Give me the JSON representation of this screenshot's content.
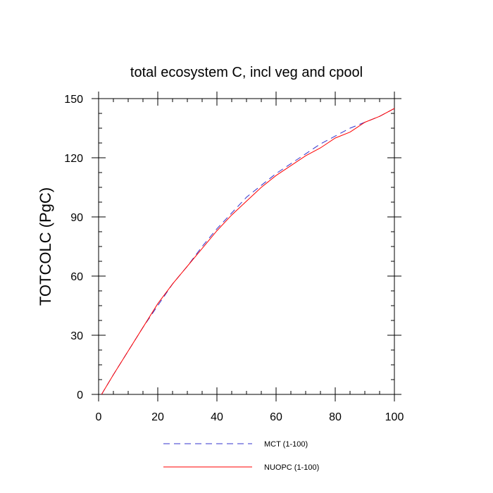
{
  "chart_data": {
    "type": "line",
    "title": "total ecosystem C, incl veg and cpool",
    "xlabel": "",
    "ylabel": "TOTCOLC  (PgC)",
    "xlim": [
      0,
      100
    ],
    "ylim": [
      0,
      150
    ],
    "x_ticks": [
      0,
      20,
      40,
      60,
      80,
      100
    ],
    "y_ticks": [
      0,
      30,
      60,
      90,
      120,
      150
    ],
    "x_tick_labels": [
      "0",
      "20",
      "40",
      "60",
      "80",
      "100"
    ],
    "y_tick_labels": [
      "0",
      "30",
      "60",
      "90",
      "120",
      "150"
    ],
    "grid": false,
    "legend_position": "bottom",
    "x": [
      1,
      5,
      10,
      15,
      20,
      25,
      30,
      35,
      40,
      45,
      50,
      55,
      60,
      65,
      70,
      75,
      80,
      85,
      90,
      95,
      100
    ],
    "series": [
      {
        "name": "MCT (1-100)",
        "color": "#3333cc",
        "style": "dashed",
        "values": [
          0,
          10,
          22,
          34,
          45,
          56,
          65,
          75,
          84,
          92,
          100,
          106,
          112,
          117,
          122,
          127,
          131,
          135,
          138,
          141,
          145
        ]
      },
      {
        "name": "NUOPC (1-100)",
        "color": "#ff0000",
        "style": "solid",
        "values": [
          0,
          10,
          22,
          34,
          46,
          56,
          65,
          74,
          83,
          91,
          98,
          105,
          111,
          116,
          121,
          125,
          130,
          133,
          138,
          141,
          145
        ]
      }
    ]
  }
}
